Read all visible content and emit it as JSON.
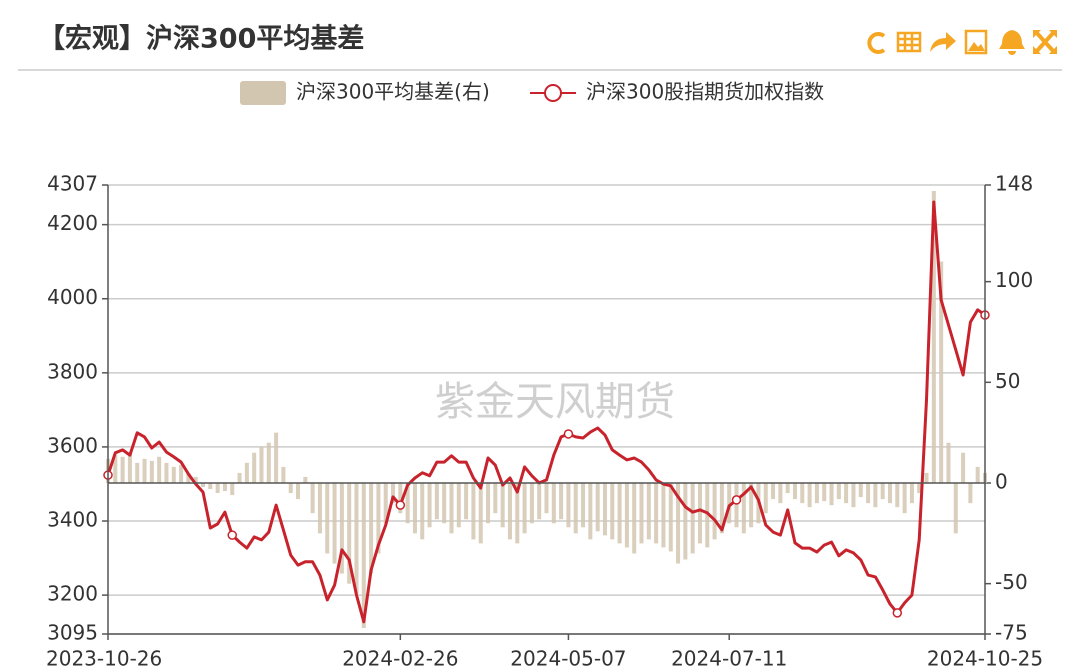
{
  "chart_data": {
    "type": "combo",
    "title": "【宏观】沪深300平均基差",
    "watermark": "紫金天风期货",
    "categories": [
      "2023-10-26",
      null,
      null,
      null,
      null,
      null,
      null,
      null,
      null,
      null,
      null,
      null,
      null,
      null,
      null,
      null,
      null,
      null,
      null,
      null,
      null,
      null,
      null,
      null,
      null,
      null,
      null,
      null,
      null,
      null,
      null,
      null,
      null,
      null,
      null,
      null,
      null,
      null,
      null,
      null,
      "2024-02-26",
      null,
      null,
      null,
      null,
      null,
      null,
      null,
      null,
      null,
      null,
      null,
      null,
      null,
      null,
      null,
      null,
      null,
      null,
      null,
      null,
      null,
      null,
      "2024-05-07",
      null,
      null,
      null,
      null,
      null,
      null,
      null,
      null,
      null,
      null,
      null,
      null,
      null,
      null,
      null,
      null,
      null,
      null,
      null,
      null,
      null,
      "2024-07-11",
      null,
      null,
      null,
      null,
      null,
      null,
      null,
      null,
      null,
      null,
      null,
      null,
      null,
      null,
      null,
      null,
      null,
      null,
      null,
      null,
      null,
      null,
      null,
      null,
      null,
      null,
      null,
      null,
      null,
      null,
      null,
      null,
      null,
      null,
      "2024-10-25"
    ],
    "series": [
      {
        "name": "沪深300平均基差(右)",
        "type": "bar",
        "axis": "y2",
        "color": "#d3c6b0",
        "values": [
          12,
          14,
          13,
          15,
          10,
          12,
          11,
          13,
          10,
          8,
          9,
          5,
          3,
          -2,
          -3,
          -5,
          -4,
          -6,
          5,
          10,
          15,
          18,
          20,
          25,
          8,
          -5,
          -8,
          3,
          -15,
          -25,
          -35,
          -40,
          -45,
          -50,
          -55,
          -72,
          -45,
          -35,
          -20,
          -10,
          -15,
          -20,
          -25,
          -28,
          -22,
          -18,
          -20,
          -25,
          -22,
          -18,
          -28,
          -30,
          -20,
          -15,
          -22,
          -28,
          -30,
          -25,
          -20,
          -18,
          -15,
          -20,
          -18,
          -22,
          -25,
          -22,
          -28,
          -24,
          -26,
          -28,
          -30,
          -32,
          -35,
          -30,
          -28,
          -30,
          -32,
          -34,
          -40,
          -38,
          -35,
          -30,
          -32,
          -28,
          -25,
          -20,
          -22,
          -25,
          -22,
          -20,
          -15,
          -8,
          -10,
          -5,
          -8,
          -10,
          -12,
          -10,
          -9,
          -11,
          -8,
          -10,
          -12,
          -7,
          -10,
          -12,
          -8,
          -10,
          -12,
          -15,
          -10,
          -5,
          5,
          145,
          110,
          20,
          -25,
          15,
          -10,
          8,
          5
        ]
      },
      {
        "name": "沪深300股指期货加权指数",
        "type": "line",
        "color": "#c8232c",
        "values": [
          3524,
          3584,
          3592,
          3578,
          3638,
          3627,
          3597,
          3613,
          3586,
          3573,
          3559,
          3527,
          3500,
          3478,
          3381,
          3392,
          3424,
          3362,
          3343,
          3327,
          3357,
          3349,
          3370,
          3443,
          3376,
          3308,
          3281,
          3290,
          3290,
          3254,
          3187,
          3227,
          3322,
          3295,
          3200,
          3128,
          3268,
          3335,
          3389,
          3465,
          3443,
          3497,
          3516,
          3530,
          3522,
          3559,
          3559,
          3576,
          3559,
          3559,
          3516,
          3489,
          3570,
          3551,
          3497,
          3516,
          3478,
          3546,
          3522,
          3503,
          3511,
          3578,
          3627,
          3635,
          3627,
          3624,
          3640,
          3651,
          3632,
          3592,
          3578,
          3565,
          3570,
          3559,
          3538,
          3511,
          3500,
          3495,
          3465,
          3438,
          3424,
          3430,
          3422,
          3403,
          3376,
          3441,
          3457,
          3473,
          3492,
          3457,
          3389,
          3370,
          3362,
          3430,
          3341,
          3327,
          3327,
          3316,
          3335,
          3343,
          3306,
          3322,
          3314,
          3295,
          3254,
          3249,
          3214,
          3176,
          3152,
          3179,
          3200,
          3349,
          3727,
          4261,
          3997,
          3929,
          3862,
          3794,
          3937,
          3970,
          3956
        ]
      }
    ],
    "ylim": [
      3095,
      4307
    ],
    "yticks": [
      3095,
      3200,
      3400,
      3600,
      3800,
      4000,
      4200,
      4307
    ],
    "y2lim": [
      -75,
      148
    ],
    "y2ticks": [
      -75,
      -50,
      0,
      50,
      100,
      148
    ],
    "grid": true
  }
}
